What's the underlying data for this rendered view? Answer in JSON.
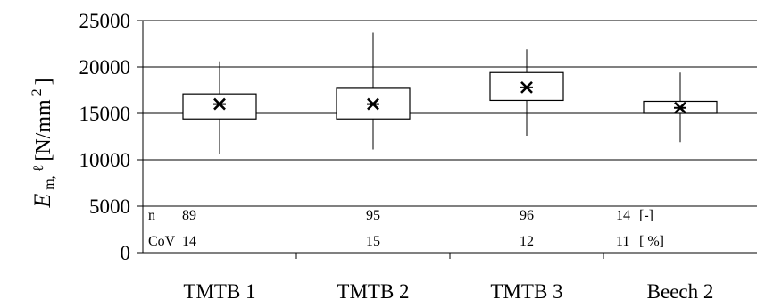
{
  "chart_data": {
    "type": "boxplot",
    "title": "",
    "ylabel": {
      "symbol": "E",
      "subscript": "m,",
      "ell": "ℓ",
      "unit_open": "[N/mm",
      "unit_power": "2",
      "unit_close": "]"
    },
    "ylim": [
      0,
      25000
    ],
    "yticks": [
      0,
      5000,
      10000,
      15000,
      20000,
      25000
    ],
    "ytick_labels": [
      "0",
      "5000",
      "10000",
      "15000",
      "20000",
      "25000"
    ],
    "grid": "horizontal",
    "categories": [
      "TMTB 1",
      "TMTB 2",
      "TMTB 3",
      "Beech 2"
    ],
    "boxes": [
      {
        "category": "TMTB 1",
        "min": 10600,
        "q1": 14400,
        "mean": 16000,
        "q3": 17100,
        "max": 20600
      },
      {
        "category": "TMTB 2",
        "min": 11100,
        "q1": 14400,
        "mean": 16000,
        "q3": 17700,
        "max": 23700
      },
      {
        "category": "TMTB 3",
        "min": 12600,
        "q1": 16400,
        "mean": 17800,
        "q3": 19400,
        "max": 21900
      },
      {
        "category": "Beech 2",
        "min": 11900,
        "q1": 15000,
        "mean": 15600,
        "q3": 16300,
        "max": 19400
      }
    ],
    "stats": {
      "n": {
        "label": "n",
        "values": [
          "89",
          "95",
          "96",
          "14"
        ],
        "unit": "[-]"
      },
      "cov": {
        "label": "CoV",
        "values": [
          "14",
          "15",
          "12",
          "11"
        ],
        "unit": "[ %]"
      }
    }
  }
}
